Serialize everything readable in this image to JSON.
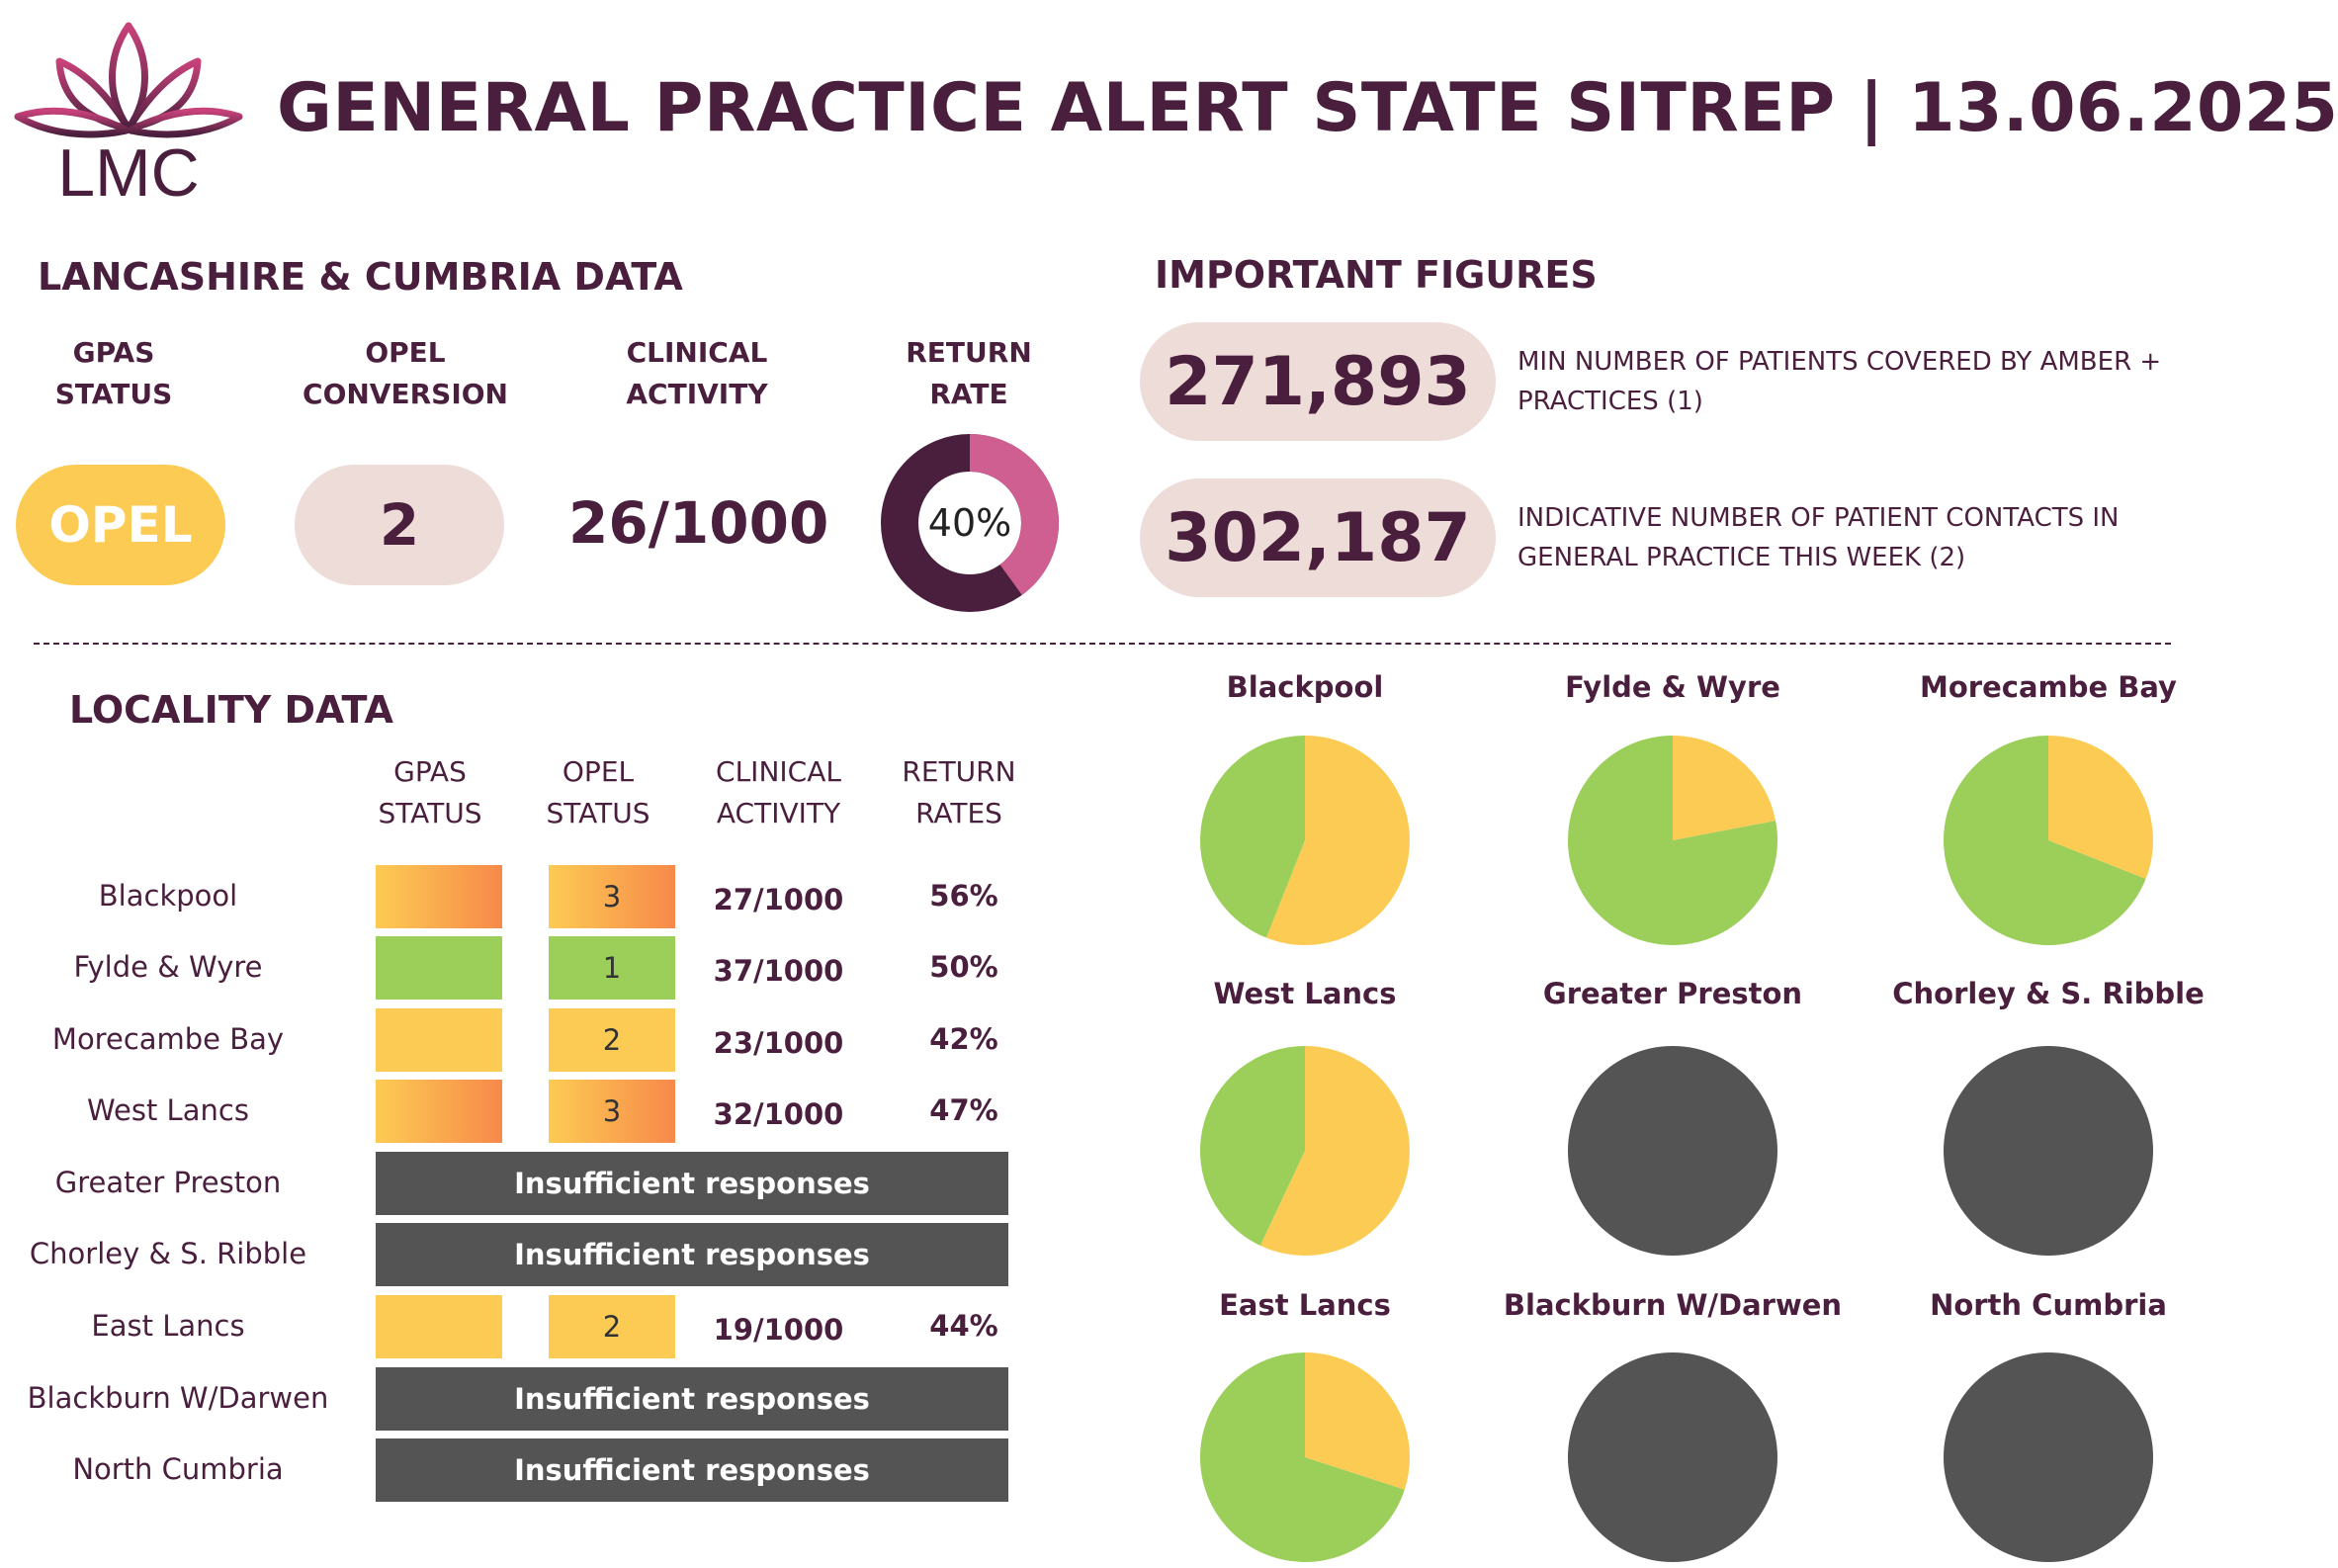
{
  "header": {
    "logo_text": "LMC",
    "title": "GENERAL PRACTICE ALERT STATE SITREP | 13.06.2025"
  },
  "region": {
    "heading": "LANCASHIRE & CUMBRIA DATA",
    "columns": [
      {
        "line1": "GPAS",
        "line2": "STATUS"
      },
      {
        "line1": "OPEL",
        "line2": "CONVERSION"
      },
      {
        "line1": "CLINICAL",
        "line2": "ACTIVITY"
      },
      {
        "line1": "RETURN",
        "line2": "RATE"
      }
    ],
    "gpas_status": "OPEL",
    "opel_conversion": "2",
    "clinical_activity": "26/1000",
    "return_rate_label": "40%",
    "return_rate": 0.4
  },
  "figures": {
    "heading": "IMPORTANT FIGURES",
    "items": [
      {
        "value": "271,893",
        "desc1": "MIN NUMBER OF PATIENTS COVERED BY AMBER +",
        "desc2": "PRACTICES (1)"
      },
      {
        "value": "302,187",
        "desc1": "INDICATIVE NUMBER OF PATIENT CONTACTS IN",
        "desc2": "GENERAL PRACTICE THIS WEEK (2)"
      }
    ]
  },
  "locality": {
    "heading": "LOCALITY DATA",
    "columns": [
      {
        "line1": "GPAS",
        "line2": "STATUS"
      },
      {
        "line1": "OPEL",
        "line2": "STATUS"
      },
      {
        "line1": "CLINICAL",
        "line2": "ACTIVITY"
      },
      {
        "line1": "RETURN",
        "line2": "RATES"
      }
    ],
    "rows": [
      {
        "name": "Blackpool",
        "status": "amber-red",
        "opel": "3",
        "clinical": "27/1000",
        "return": "56%"
      },
      {
        "name": "Fylde & Wyre",
        "status": "green",
        "opel": "1",
        "clinical": "37/1000",
        "return": "50%"
      },
      {
        "name": "Morecambe Bay",
        "status": "amber",
        "opel": "2",
        "clinical": "23/1000",
        "return": "42%"
      },
      {
        "name": "West Lancs",
        "status": "amber-red",
        "opel": "3",
        "clinical": "32/1000",
        "return": "47%"
      },
      {
        "name": "Greater Preston",
        "insufficient": "Insufficient responses"
      },
      {
        "name": "Chorley & S. Ribble",
        "insufficient": "Insufficient responses"
      },
      {
        "name": "East Lancs",
        "status": "amber",
        "opel": "2",
        "clinical": "19/1000",
        "return": "44%"
      },
      {
        "name": "Blackburn W/Darwen",
        "insufficient": "Insufficient responses"
      },
      {
        "name": "North Cumbria",
        "insufficient": "Insufficient responses"
      }
    ]
  },
  "colors": {
    "plum": "#4a1f3d",
    "amber": "#fccb53",
    "green": "#9ccf5a",
    "orange": "#f7894a",
    "grey": "#545454",
    "pink": "#cf5f91",
    "pill_bg": "#eddcd8"
  },
  "chart_data": {
    "type": "pie",
    "series_colors": {
      "amber": "#fccb53",
      "green": "#9ccf5a",
      "insufficient": "#545454"
    },
    "charts": [
      {
        "title": "Blackpool",
        "amber": 0.56,
        "green": 0.44
      },
      {
        "title": "Fylde & Wyre",
        "amber": 0.22,
        "green": 0.78
      },
      {
        "title": "Morecambe Bay",
        "amber": 0.31,
        "green": 0.69
      },
      {
        "title": "West Lancs",
        "amber": 0.57,
        "green": 0.43
      },
      {
        "title": "Greater Preston",
        "insufficient": 1
      },
      {
        "title": "Chorley & S. Ribble",
        "insufficient": 1
      },
      {
        "title": "East Lancs",
        "amber": 0.3,
        "green": 0.7
      },
      {
        "title": "Blackburn W/Darwen",
        "insufficient": 1
      },
      {
        "title": "North Cumbria",
        "insufficient": 1
      }
    ]
  }
}
